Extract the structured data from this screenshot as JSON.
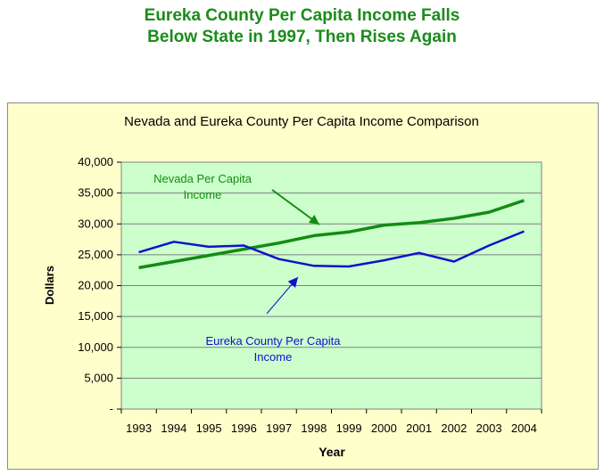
{
  "page_title_line_1": "Eureka County Per Capita Income Falls",
  "page_title_line_2": "Below State in 1997, Then Rises Again",
  "colors": {
    "title": "#1a8c1a",
    "frame_bg": "#ffffcc",
    "plot_bg": "#ccffcc",
    "nevada": "#128c12",
    "eureka": "#1010cc"
  },
  "chart_data": {
    "type": "line",
    "title": "Nevada and Eureka County Per Capita Income Comparison",
    "xlabel": "Year",
    "ylabel": "Dollars",
    "ylim": [
      0,
      40000
    ],
    "y_ticks": [
      "-",
      "5,000",
      "10,000",
      "15,000",
      "20,000",
      "25,000",
      "30,000",
      "35,000",
      "40,000"
    ],
    "grid": true,
    "categories": [
      "1993",
      "1994",
      "1995",
      "1996",
      "1997",
      "1998",
      "1999",
      "2000",
      "2001",
      "2002",
      "2003",
      "2004"
    ],
    "series": [
      {
        "name": "Nevada Per Capita Income",
        "values": [
          22900,
          23900,
          24900,
          25900,
          26900,
          28100,
          28700,
          29800,
          30200,
          30900,
          31900,
          33800
        ]
      },
      {
        "name": "Eureka County Per Capita Income",
        "values": [
          25400,
          27100,
          26300,
          26500,
          24300,
          23200,
          23100,
          24100,
          25300,
          23900,
          26500,
          28800
        ]
      }
    ],
    "annotations": [
      {
        "series": 0,
        "text_line_1": "Nevada Per Capita",
        "text_line_2": "Income"
      },
      {
        "series": 1,
        "text_line_1": "Eureka County Per Capita",
        "text_line_2": "Income"
      }
    ]
  }
}
